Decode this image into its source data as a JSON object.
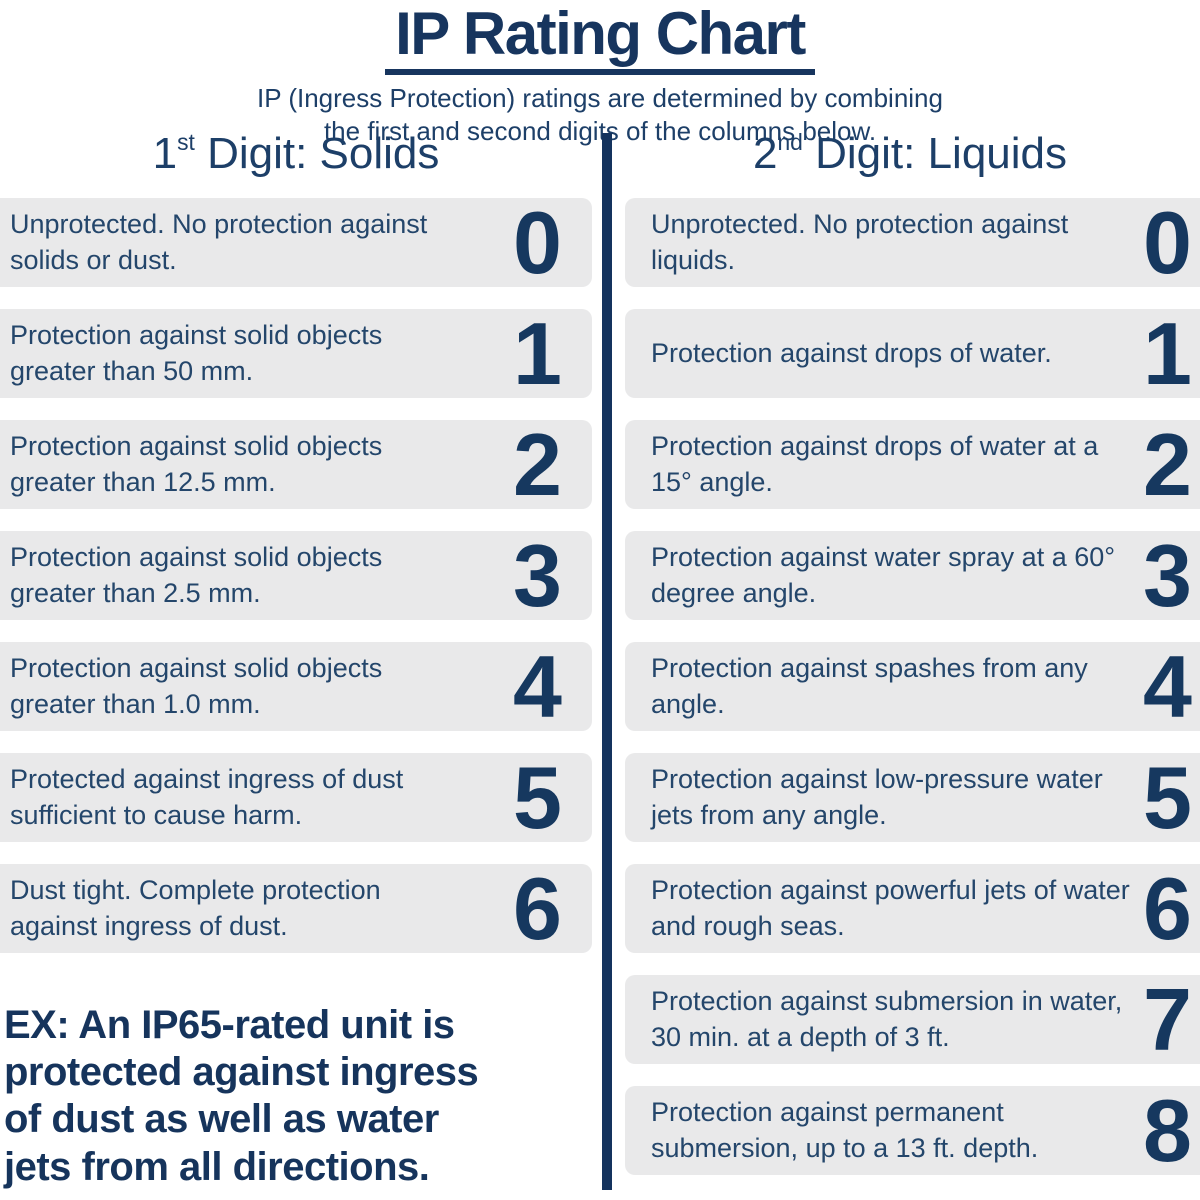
{
  "header": {
    "title": "IP Rating Chart",
    "subtitle_line1": "IP (Ingress Protection) ratings are determined by combining",
    "subtitle_line2": "the first and second digits of the columns below."
  },
  "colors": {
    "navy_text": "#24466b",
    "navy_dark": "#16345c",
    "box_gray": "#e9e9ea",
    "background": "#ffffff"
  },
  "columns": [
    {
      "heading_number": "1",
      "heading_sup": "st",
      "heading_rest": " Digit: Solids",
      "rows": [
        {
          "digit": "0",
          "description": "Unprotected. No protection against solids or dust."
        },
        {
          "digit": "1",
          "description": "Protection against solid objects greater than 50 mm."
        },
        {
          "digit": "2",
          "description": "Protection against solid objects greater than 12.5 mm."
        },
        {
          "digit": "3",
          "description": "Protection against solid objects greater than 2.5 mm."
        },
        {
          "digit": "4",
          "description": "Protection against solid objects greater than 1.0 mm."
        },
        {
          "digit": "5",
          "description": "Protected against ingress of dust sufficient to cause harm."
        },
        {
          "digit": "6",
          "description": "Dust tight. Complete protection against ingress of dust."
        }
      ],
      "example_lines": [
        "EX: An IP65-rated unit is",
        "protected against ingress",
        "of dust as well as water",
        "jets from all directions."
      ]
    },
    {
      "heading_number": "2",
      "heading_sup": "nd",
      "heading_rest": " Digit: Liquids",
      "rows": [
        {
          "digit": "0",
          "description": "Unprotected. No protection against liquids."
        },
        {
          "digit": "1",
          "description": "Protection against drops of water."
        },
        {
          "digit": "2",
          "description": "Protection against drops of water at a 15° angle."
        },
        {
          "digit": "3",
          "description": "Protection against water spray at a 60° degree angle."
        },
        {
          "digit": "4",
          "description": "Protection against spashes from any angle."
        },
        {
          "digit": "5",
          "description": "Protection against low-pressure water jets from any angle."
        },
        {
          "digit": "6",
          "description": "Protection against powerful jets of water and rough seas."
        },
        {
          "digit": "7",
          "description": "Protection against submersion in water, 30 min. at a depth of 3 ft."
        },
        {
          "digit": "8",
          "description": "Protection against permanent submersion, up to a 13 ft. depth."
        }
      ]
    }
  ]
}
